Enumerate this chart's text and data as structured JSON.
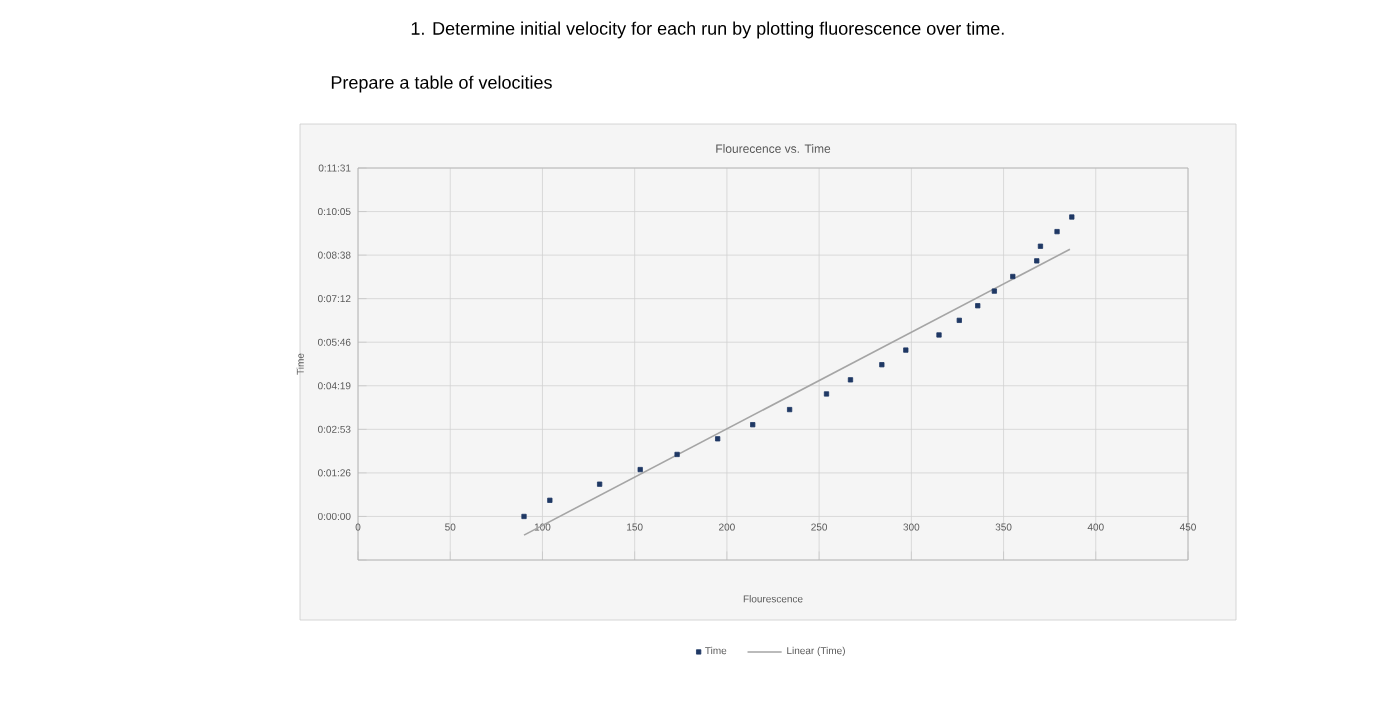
{
  "chart_data": {
    "type": "scatter",
    "title": "Flourecence vs. Time",
    "xlabel": "Flourescence",
    "ylabel": "Time",
    "annotations": [
      "1. Determine initial velocity for each run by plotting fluorescence over time.",
      "Prepare a table of velocities"
    ],
    "series": [
      {
        "name": "Time",
        "color": "#1f3864",
        "marker": "square",
        "x": [
          90,
          104,
          131,
          153,
          173,
          195,
          214,
          234,
          254,
          267,
          284,
          297,
          315,
          326,
          336,
          345,
          355,
          368,
          370,
          379,
          387
        ],
        "values": [
          0,
          32,
          64,
          93,
          123,
          154,
          182,
          212,
          243,
          271,
          301,
          330,
          360,
          389,
          418,
          447,
          476,
          507,
          536,
          565,
          594
        ]
      },
      {
        "name": "Linear (Time)",
        "type": "line",
        "color": "#a5a5a5",
        "line_style": "solid",
        "x": [
          90,
          386
        ],
        "values": [
          -37,
          530
        ]
      }
    ],
    "xlim": [
      0,
      450
    ],
    "xticks": [
      0,
      50,
      100,
      150,
      200,
      250,
      300,
      350,
      400,
      450
    ],
    "ylim": [
      -86.4,
      691.2
    ],
    "yticks": [
      {
        "value": -86.4,
        "label": null
      },
      {
        "value": 0,
        "label": "0:00:00"
      },
      {
        "value": 86.4,
        "label": "0:01:26"
      },
      {
        "value": 172.8,
        "label": "0:02:53"
      },
      {
        "value": 259.2,
        "label": "0:04:19"
      },
      {
        "value": 345.6,
        "label": "0:05:46"
      },
      {
        "value": 432,
        "label": "0:07:12"
      },
      {
        "value": 518.4,
        "label": "0:08:38"
      },
      {
        "value": 604.8,
        "label": "0:10:05"
      },
      {
        "value": 691.2,
        "label": "0:11:31"
      }
    ],
    "grid": true,
    "legend": "bottom"
  }
}
